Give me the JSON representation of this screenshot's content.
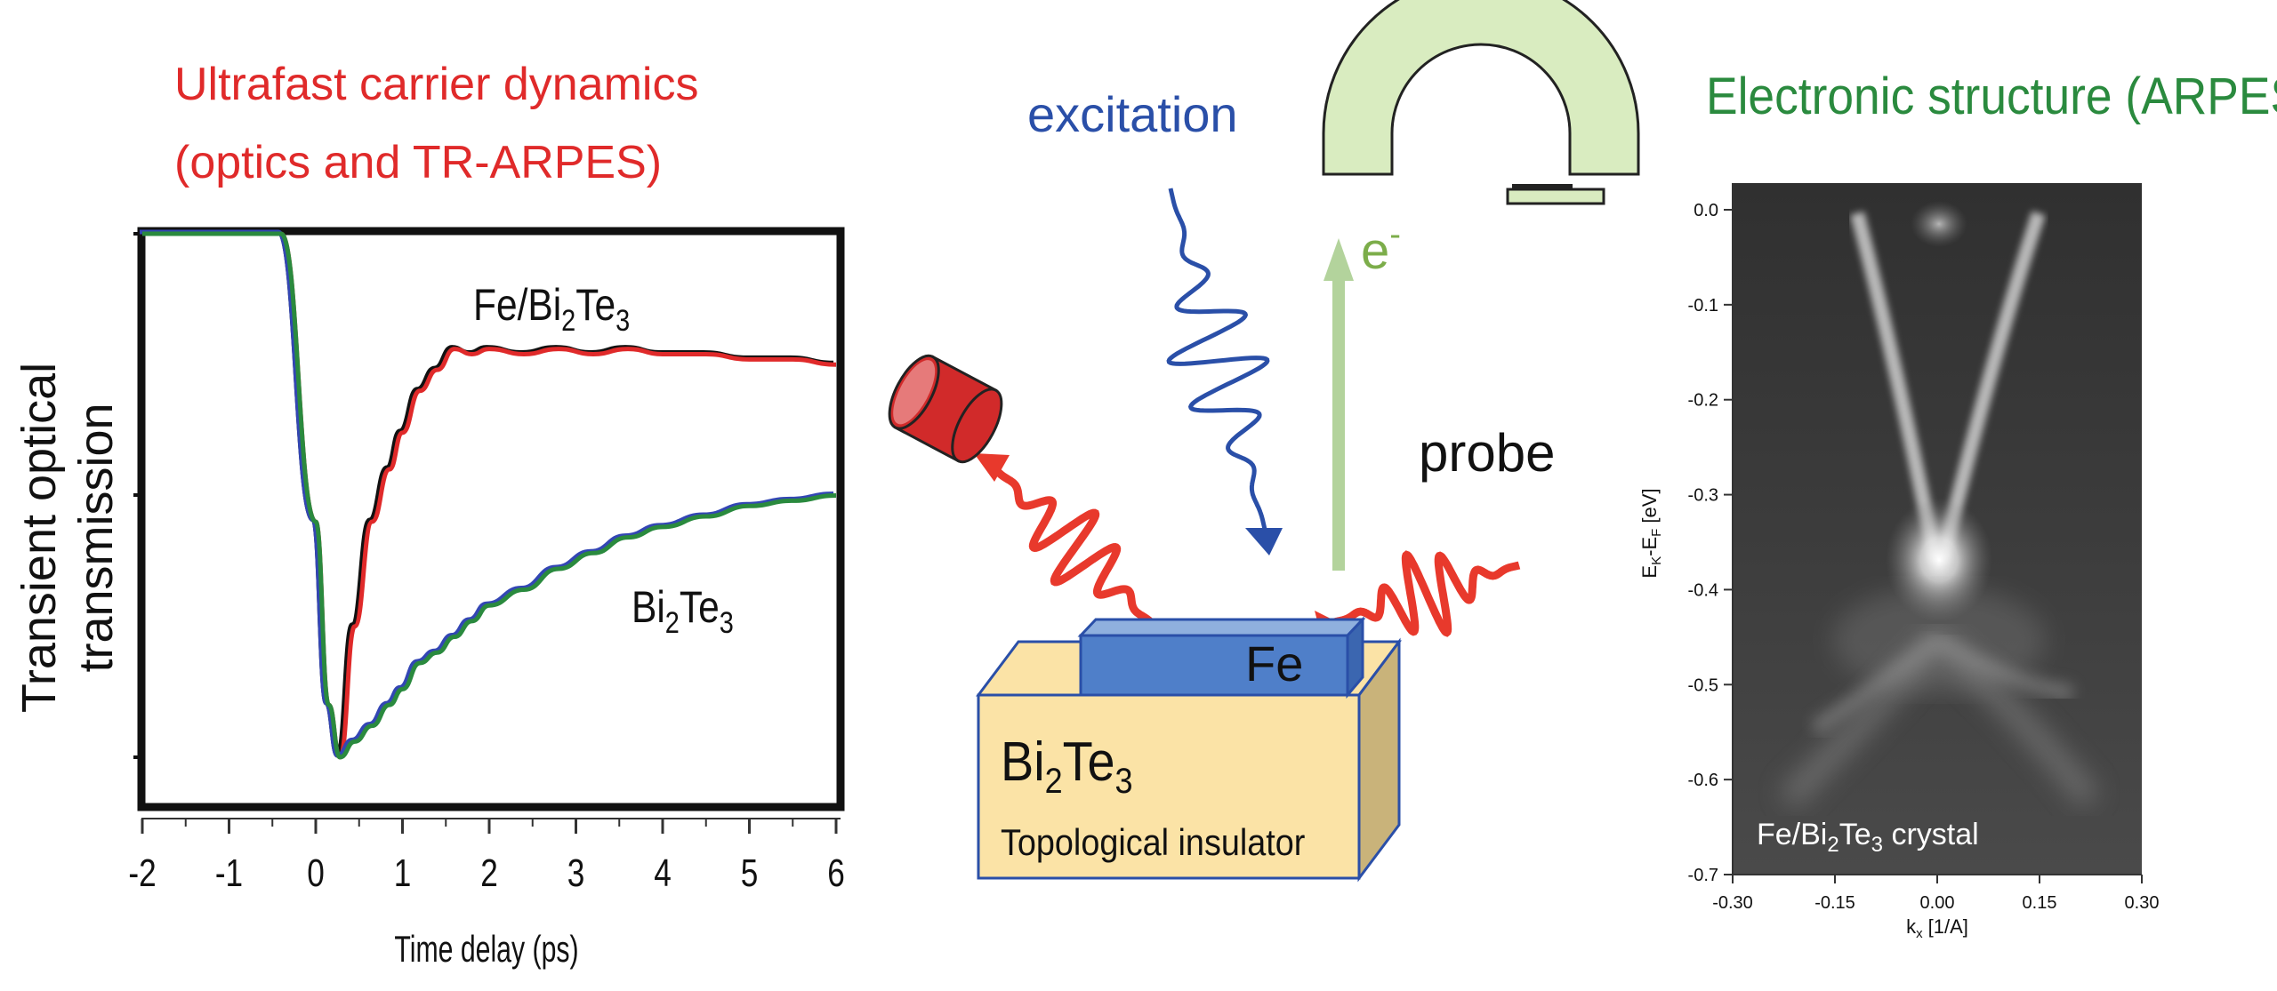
{
  "left_panel": {
    "title_line1": "Ultrafast carrier dynamics",
    "title_line2": "(optics and TR-ARPES)",
    "title_color": "#e02a2a",
    "ylabel_line1": "Transient optical",
    "ylabel_line2": "transmission",
    "xlabel": "Time delay  (ps)",
    "curve_label_fe_main": "Fe/Bi",
    "curve_label_fe_sub1": "2",
    "curve_label_fe_mid": "Te",
    "curve_label_fe_sub2": "3",
    "curve_label_bi_main": "Bi",
    "curve_label_bi_sub1": "2",
    "curve_label_bi_mid": "Te",
    "curve_label_bi_sub2": "3"
  },
  "center_panel": {
    "excitation_label": "excitation",
    "excitation_color": "#2a4fa8",
    "probe_label": "probe",
    "electron_label": "e",
    "electron_sup": "-",
    "electron_color": "#7cad4a",
    "fe_layer_label": "Fe",
    "substrate_main": "Bi",
    "substrate_sub1": "2",
    "substrate_mid": "Te",
    "substrate_sub2": "3",
    "substrate_caption": "Topological insulator",
    "wave_color": "#e8392c",
    "substrate_color": "#fbe3a6",
    "fe_color": "#4f7fc9",
    "analyzer_color": "#d9ecc0"
  },
  "right_panel": {
    "title": "Electronic structure (ARPES)",
    "title_color": "#2a8a3e",
    "ylabel": "E",
    "ylabel_sub": "K",
    "ylabel_rest": "-E",
    "ylabel_sub2": "F",
    "ylabel_unit": " [eV]",
    "xlabel": "k",
    "xlabel_sub": "x",
    "xlabel_unit": " [1/A]",
    "inset_main": "Fe/Bi",
    "inset_sub1": "2",
    "inset_mid": "Te",
    "inset_sub2": "3",
    "inset_rest": " crystal"
  },
  "chart_data": [
    {
      "type": "line",
      "title": "",
      "xlabel": "Time delay  (ps)",
      "ylabel": "Transient optical transmission",
      "xlim": [
        -2,
        6
      ],
      "x_ticks": [
        "-2",
        "-1",
        "0",
        "1",
        "2",
        "3",
        "4",
        "5",
        "6"
      ],
      "y_ticks": [],
      "series": [
        {
          "name": "Fe/Bi2Te3",
          "color": "#e02a2a",
          "x": [
            -2,
            -0.4,
            0,
            0.15,
            0.28,
            0.45,
            0.65,
            0.85,
            1.0,
            1.2,
            1.4,
            1.6,
            1.8,
            2.0,
            2.4,
            2.8,
            3.2,
            3.6,
            4.0,
            4.5,
            5.0,
            5.5,
            6.0
          ],
          "y": [
            1.0,
            1.0,
            0.45,
            0.1,
            0.0,
            0.25,
            0.45,
            0.55,
            0.62,
            0.7,
            0.74,
            0.78,
            0.77,
            0.78,
            0.77,
            0.78,
            0.77,
            0.78,
            0.77,
            0.77,
            0.76,
            0.76,
            0.75
          ]
        },
        {
          "name": "Bi2Te3",
          "color": "#2a8a3e",
          "x": [
            -2,
            -0.4,
            0,
            0.15,
            0.28,
            0.45,
            0.65,
            0.85,
            1.0,
            1.2,
            1.4,
            1.6,
            1.8,
            2.0,
            2.4,
            2.8,
            3.2,
            3.6,
            4.0,
            4.5,
            5.0,
            5.5,
            6.0
          ],
          "y": [
            1.0,
            1.0,
            0.45,
            0.1,
            0.0,
            0.03,
            0.06,
            0.1,
            0.13,
            0.18,
            0.2,
            0.23,
            0.26,
            0.29,
            0.32,
            0.36,
            0.39,
            0.42,
            0.44,
            0.46,
            0.48,
            0.49,
            0.5
          ]
        }
      ]
    },
    {
      "type": "heatmap",
      "title": "Electronic structure (ARPES)",
      "xlabel": "kx [1/A]",
      "ylabel": "EK-EF [eV]",
      "xlim": [
        -0.3,
        0.3
      ],
      "ylim": [
        -0.7,
        0.0
      ],
      "x_ticks": [
        "-0.30",
        "-0.15",
        "0.00",
        "0.15",
        "0.30"
      ],
      "y_ticks": [
        "0.0",
        "-0.1",
        "-0.2",
        "-0.3",
        "-0.4",
        "-0.5",
        "-0.6",
        "-0.7"
      ]
    }
  ]
}
